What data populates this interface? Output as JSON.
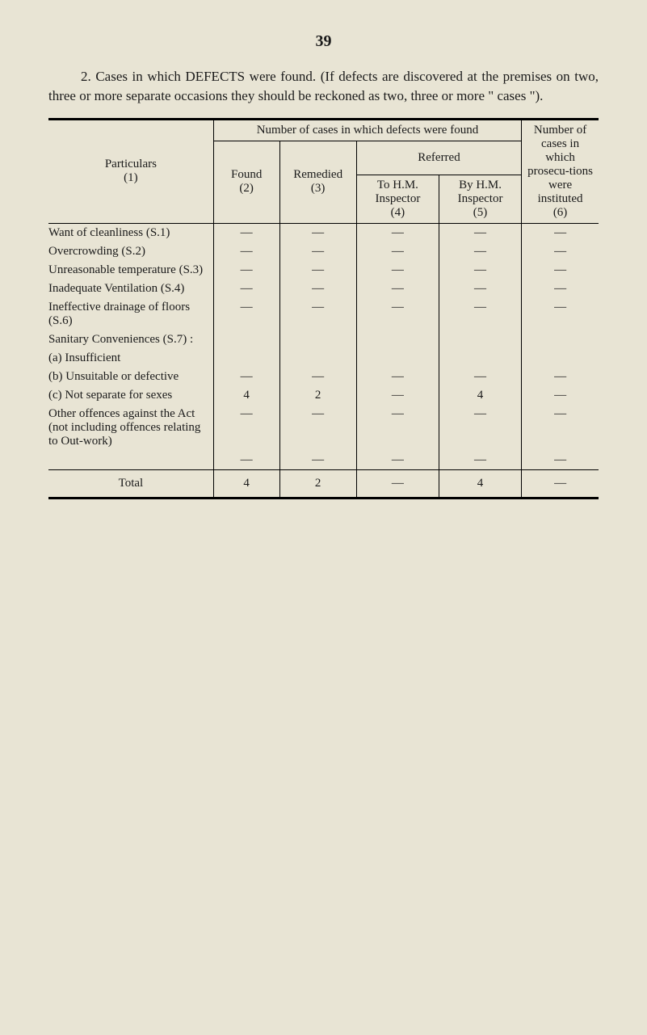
{
  "page_number": "39",
  "intro_text": "2. Cases in which DEFECTS were found. (If defects are discovered at the premises on two, three or more separate occasions they should be reckoned as two, three or more \" cases \").",
  "headers": {
    "main_span": "Number of cases in which defects were found",
    "col6_span": "Number of cases in which prosecu-tions were instituted",
    "referred": "Referred",
    "particulars": "Particulars",
    "col1_num": "(1)",
    "found": "Found",
    "col2_num": "(2)",
    "remedied": "Remedied",
    "col3_num": "(3)",
    "to_hm": "To H.M. Inspector",
    "col4_num": "(4)",
    "by_hm": "By H.M. Inspector",
    "col5_num": "(5)",
    "col6_num": "(6)"
  },
  "rows": [
    {
      "label": "Want of cleanliness (S.1)",
      "c2": "—",
      "c3": "—",
      "c4": "—",
      "c5": "—",
      "c6": "—"
    },
    {
      "label": "Overcrowding (S.2)",
      "c2": "—",
      "c3": "—",
      "c4": "—",
      "c5": "—",
      "c6": "—"
    },
    {
      "label": "Unreasonable temperature (S.3)",
      "c2": "—",
      "c3": "—",
      "c4": "—",
      "c5": "—",
      "c6": "—"
    },
    {
      "label": "Inadequate Ventilation (S.4)",
      "c2": "—",
      "c3": "—",
      "c4": "—",
      "c5": "—",
      "c6": "—"
    },
    {
      "label": "Ineffective drainage of floors (S.6)",
      "c2": "—",
      "c3": "—",
      "c4": "—",
      "c5": "—",
      "c6": "—"
    },
    {
      "label": "Sanitary Conveniences (S.7) :",
      "c2": "",
      "c3": "",
      "c4": "",
      "c5": "",
      "c6": ""
    },
    {
      "label": "(a) Insufficient",
      "indent": true,
      "c2": "",
      "c3": "",
      "c4": "",
      "c5": "",
      "c6": ""
    },
    {
      "label": "(b) Unsuitable or defective",
      "indent": true,
      "c2": "—",
      "c3": "—",
      "c4": "—",
      "c5": "—",
      "c6": "—"
    },
    {
      "label": "(c) Not separate for sexes",
      "indent": true,
      "c2": "4",
      "c3": "2",
      "c4": "—",
      "c5": "4",
      "c6": "—"
    },
    {
      "label": "Other offences against the Act (not including offences relating to Out-work)",
      "c2": "—",
      "c3": "—",
      "c4": "—",
      "c5": "—",
      "c6": "—"
    }
  ],
  "blank_row": {
    "c2": "—",
    "c3": "—",
    "c4": "—",
    "c5": "—",
    "c6": "—"
  },
  "total": {
    "label": "Total",
    "c2": "4",
    "c3": "2",
    "c4": "—",
    "c5": "4",
    "c6": "—"
  },
  "colors": {
    "background": "#e8e4d4",
    "text": "#1a1a1a",
    "border": "#000000"
  },
  "typography": {
    "body_fontsize": 15,
    "intro_fontsize": 17,
    "pagenum_fontsize": 20,
    "family": "Times New Roman"
  },
  "column_widths_pct": [
    30,
    12,
    14,
    15,
    15,
    14
  ]
}
